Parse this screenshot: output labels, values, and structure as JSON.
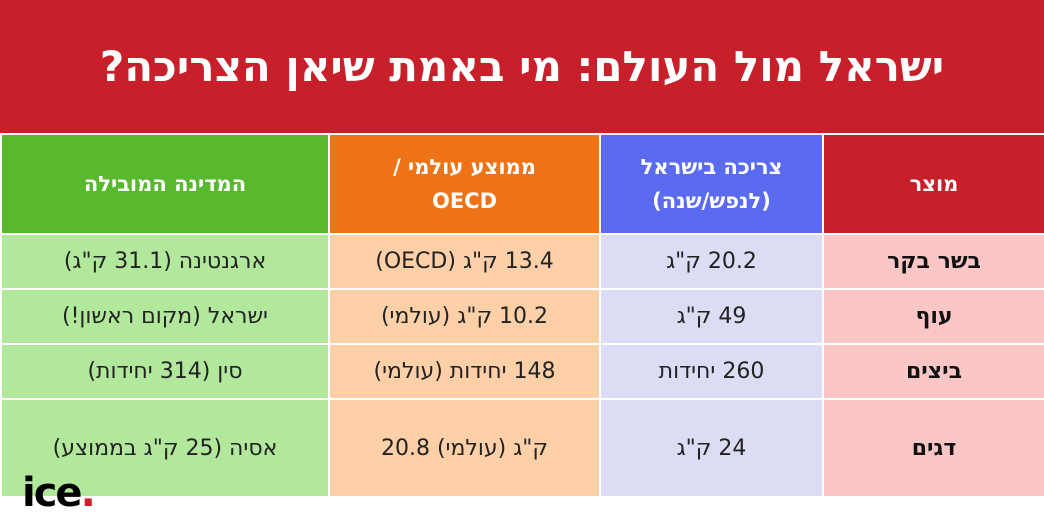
{
  "title": "ישראל מול העולם: מי באמת שיאן הצריכה?",
  "table": {
    "headers": [
      "מוצר",
      "צריכה בישראל\n(לנפש/שנה)",
      "ממוצע עולמי /\nOECD",
      "המדינה המובילה"
    ],
    "rows": [
      [
        "בשר בקר",
        "20.2 ק\"ג",
        "13.4 ק\"ג (OECD)",
        "ארגנטינה (31.1 ק\"ג)"
      ],
      [
        "עוף",
        "49 ק\"ג",
        "10.2 ק\"ג (עולמי)",
        "ישראל (מקום ראשון!)"
      ],
      [
        "ביצים",
        "260 יחידות",
        "148 יחידות (עולמי)",
        "סין (314 יחידות)"
      ],
      [
        "דגים",
        "24 ק\"ג",
        "ק\"ג (עולמי) 20.8",
        "אסיה (25 ק\"ג בממוצע)"
      ]
    ]
  },
  "logo": {
    "text": "ice",
    "dot": "."
  }
}
